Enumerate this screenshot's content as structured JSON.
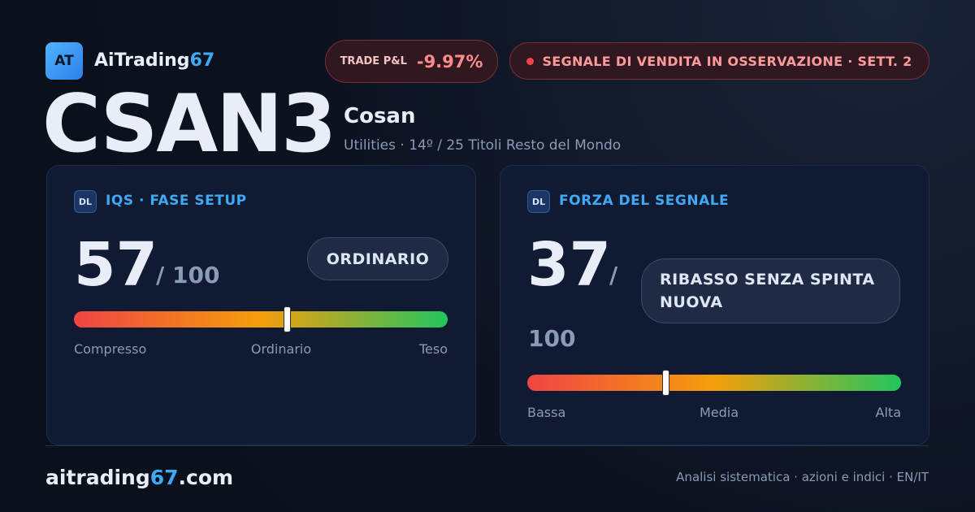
{
  "header": {
    "logo": "AT",
    "brand": "AiTrading",
    "brand_accent": "67",
    "pnl_label": "TRADE P&L",
    "pnl_value": "-9.97%",
    "signal": "SEGNALE DI VENDITA IN OSSERVAZIONE · SETT. 2"
  },
  "ticker": {
    "symbol": "CSAN3",
    "name": "Cosan",
    "subtitle": "Utilities · 14º / 25 Titoli Resto del Mondo"
  },
  "cards": [
    {
      "icon": "DL",
      "title": "IQS · FASE SETUP",
      "score": 57,
      "separator": "/",
      "max": 100,
      "badge": "ORDINARIO",
      "scale_labels": [
        "Compresso",
        "Ordinario",
        "Teso"
      ]
    },
    {
      "icon": "DL",
      "title": "FORZA DEL SEGNALE",
      "score": 37,
      "separator": "/",
      "max": 100,
      "badge": "RIBASSO SENZA SPINTA NUOVA",
      "scale_labels": [
        "Bassa",
        "Media",
        "Alta"
      ]
    }
  ],
  "footer": {
    "site": "aitrading",
    "site_accent": "67",
    "site_suffix": ".com",
    "tagline": "Analisi sistematica · azioni e indici · EN/IT"
  }
}
